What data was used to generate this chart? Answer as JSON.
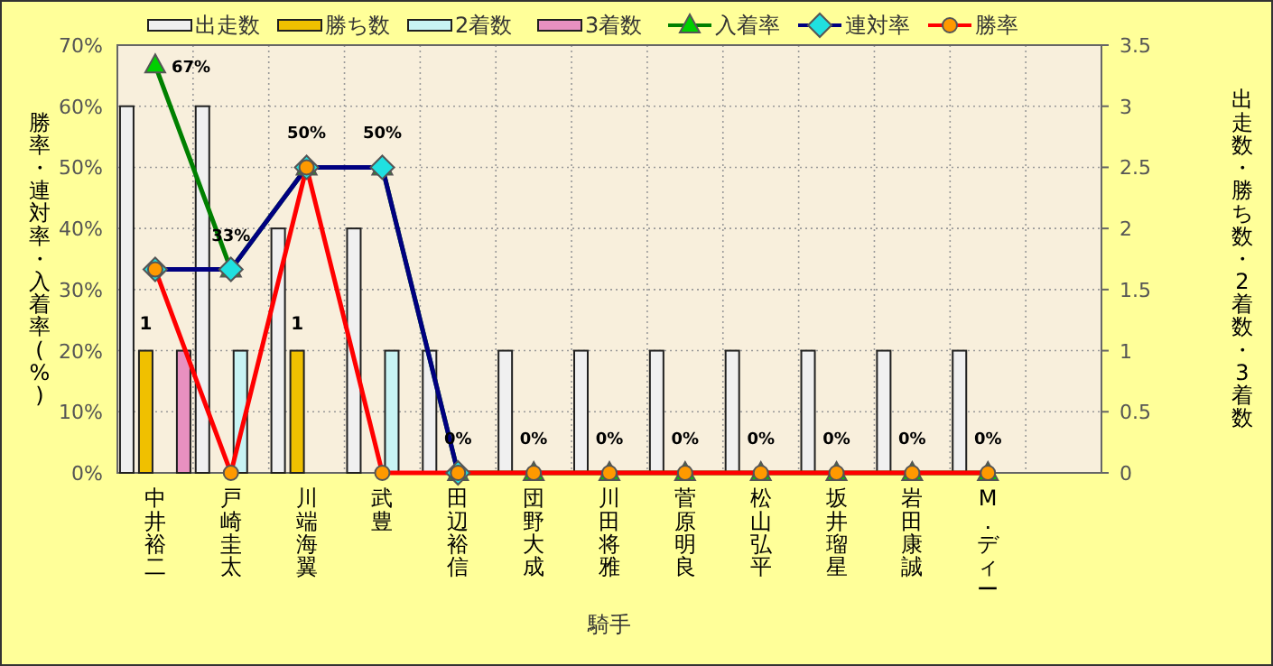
{
  "chart_data": {
    "type": "bar",
    "xlabel": "騎手",
    "ylabel": "勝率・連対率・入着率(%)",
    "y2label": "出走数・勝ち数・2着数・3着数",
    "categories": [
      "中井裕二",
      "戸崎圭太",
      "川端海翼",
      "武豊",
      "田辺裕信",
      "団野大成",
      "川田将雅",
      "菅原明良",
      "松山弘平",
      "坂井瑠星",
      "岩田康誠",
      "M.ディー",
      null
    ],
    "series": [
      {
        "name": "出走数",
        "axis": "y2",
        "color": "#f0f0f0",
        "values": [
          3,
          3,
          2,
          2,
          1,
          1,
          1,
          1,
          1,
          1,
          1,
          1,
          null
        ]
      },
      {
        "name": "勝ち数",
        "axis": "y2",
        "color": "#f0c000",
        "values": [
          1,
          0,
          1,
          0,
          0,
          0,
          0,
          0,
          0,
          0,
          0,
          0,
          null
        ],
        "value_labels": [
          "1",
          null,
          "1",
          null,
          null,
          null,
          null,
          null,
          null,
          null,
          null,
          null,
          null
        ]
      },
      {
        "name": "2着数",
        "axis": "y2",
        "color": "#c8f4f4",
        "values": [
          0,
          1,
          0,
          1,
          0,
          0,
          0,
          0,
          0,
          0,
          0,
          0,
          null
        ]
      },
      {
        "name": "3着数",
        "axis": "y2",
        "color": "#e890c0",
        "values": [
          1,
          0,
          0,
          0,
          0,
          0,
          0,
          0,
          0,
          0,
          0,
          0,
          null
        ]
      },
      {
        "name": "入着率",
        "type": "line",
        "color": "#008000",
        "marker": "triangle",
        "values": [
          66.7,
          33.3,
          50,
          50,
          0,
          0,
          0,
          0,
          0,
          0,
          0,
          0,
          null
        ],
        "value_labels": [
          "67%",
          "33%",
          "50%",
          "50%",
          "0%",
          "0%",
          "0%",
          "0%",
          "0%",
          "0%",
          "0%",
          "0%",
          null
        ]
      },
      {
        "name": "連対率",
        "type": "line",
        "color": "#000080",
        "marker": "diamond",
        "values": [
          33.3,
          33.3,
          50,
          50,
          0,
          null,
          null,
          null,
          null,
          null,
          null,
          null,
          null
        ]
      },
      {
        "name": "勝率",
        "type": "line",
        "color": "#ff0000",
        "marker": "circle",
        "values": [
          33.3,
          0,
          50,
          0,
          0,
          0,
          0,
          0,
          0,
          0,
          0,
          0,
          null
        ]
      }
    ],
    "ylim": [
      0,
      70
    ],
    "yticks": [
      {
        "value": 0,
        "label": "0%"
      },
      {
        "value": 10,
        "label": "10%"
      },
      {
        "value": 20,
        "label": "20%"
      },
      {
        "value": 30,
        "label": "30%"
      },
      {
        "value": 40,
        "label": "40%"
      },
      {
        "value": 50,
        "label": "50%"
      },
      {
        "value": 60,
        "label": "60%"
      },
      {
        "value": 70,
        "label": "70%"
      }
    ],
    "y2lim": [
      0,
      3.5
    ],
    "y2ticks": [
      0,
      0.5,
      1,
      1.5,
      2,
      2.5,
      3,
      3.5
    ],
    "grid": true,
    "legend": "top",
    "line_style": "solid"
  }
}
